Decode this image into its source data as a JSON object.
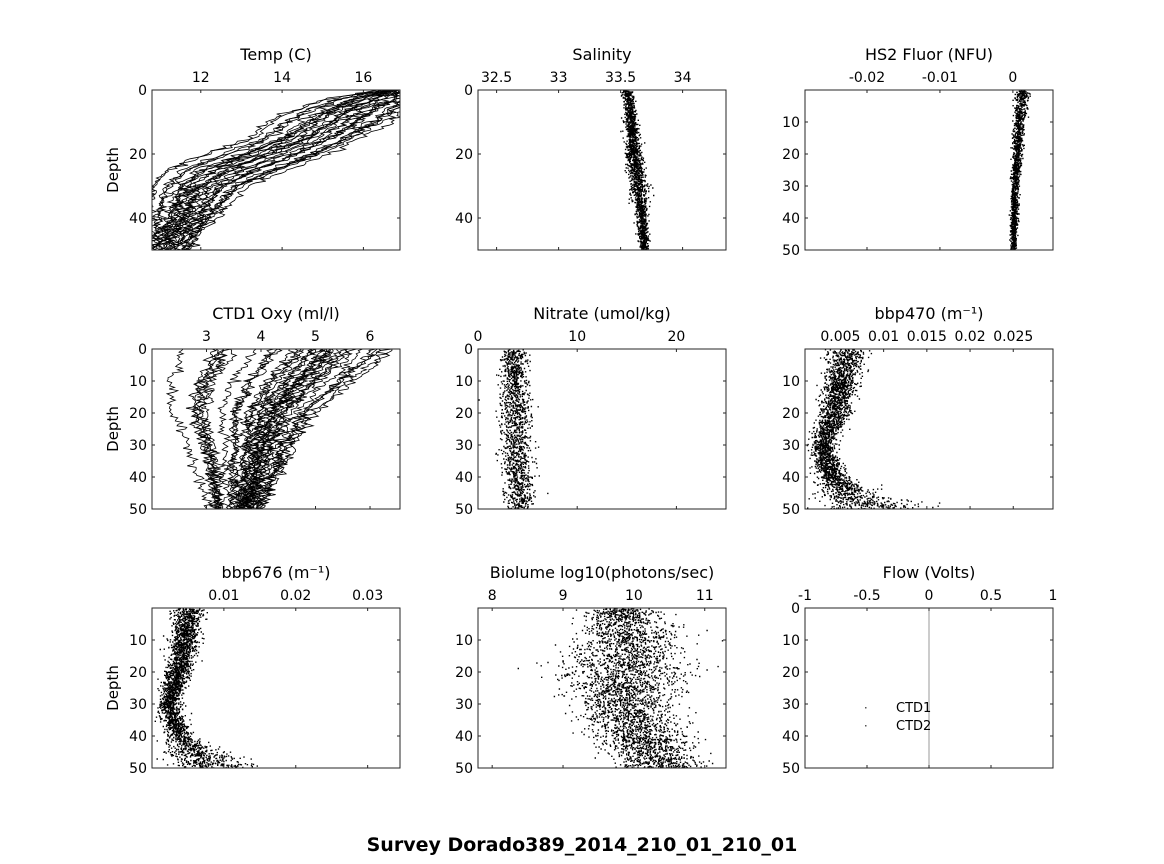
{
  "figure_title": "Survey Dorado389_2014_210_01_210_01",
  "colors": {
    "ink": "#000000",
    "axis": "#262626",
    "zero_line": "#999999"
  },
  "chart_data": [
    {
      "type": "scatter",
      "title": "Temp (C)",
      "ylabel": "Depth",
      "xlim": [
        10.8,
        16.9
      ],
      "xticks": [
        12,
        14,
        16
      ],
      "xticklabels": [
        "12",
        "14",
        "16"
      ],
      "ylim": [
        0,
        50
      ],
      "yticks": [
        0,
        20,
        40
      ],
      "yticklabels": [
        "0",
        "20",
        "40"
      ],
      "profile": {
        "depth": [
          0,
          3,
          6,
          10,
          15,
          20,
          25,
          30,
          35,
          40,
          45,
          50
        ],
        "center": [
          16.8,
          16.4,
          15.9,
          15.4,
          14.8,
          13.9,
          12.9,
          12.2,
          11.9,
          11.7,
          11.4,
          11.2
        ],
        "spread": [
          0.2,
          0.7,
          0.8,
          0.9,
          0.8,
          0.9,
          0.9,
          0.7,
          0.6,
          0.5,
          0.4,
          0.4
        ]
      },
      "style": "lines",
      "n_profiles": 30
    },
    {
      "type": "scatter",
      "title": "Salinity",
      "ylabel": "",
      "xlim": [
        32.35,
        34.35
      ],
      "xticks": [
        32.5,
        33,
        33.5,
        34
      ],
      "xticklabels": [
        "32.5",
        "33",
        "33.5",
        "34"
      ],
      "ylim": [
        0,
        50
      ],
      "yticks": [
        0,
        20,
        40
      ],
      "yticklabels": [
        "0",
        "20",
        "40"
      ],
      "profile": {
        "depth": [
          0,
          5,
          10,
          20,
          30,
          40,
          50
        ],
        "center": [
          33.55,
          33.57,
          33.58,
          33.6,
          33.64,
          33.67,
          33.69
        ],
        "spread": [
          0.03,
          0.03,
          0.03,
          0.04,
          0.04,
          0.03,
          0.02
        ]
      },
      "style": "dots",
      "n_points": 1800
    },
    {
      "type": "scatter",
      "title": "HS2 Fluor (NFU)",
      "ylabel": "",
      "xlim": [
        -0.0285,
        0.0055
      ],
      "xticks": [
        -0.02,
        -0.01,
        0
      ],
      "xticklabels": [
        "-0.02",
        "-0.01",
        "0"
      ],
      "ylim": [
        0,
        50
      ],
      "yticks": [
        10,
        20,
        30,
        40,
        50
      ],
      "yticklabels": [
        "10",
        "20",
        "30",
        "40",
        "50"
      ],
      "profile": {
        "depth": [
          1,
          10,
          20,
          30,
          40,
          50
        ],
        "center": [
          0.0012,
          0.0008,
          0.0005,
          0.0002,
          0.0001,
          0.0
        ],
        "spread": [
          0.0006,
          0.0005,
          0.0004,
          0.0003,
          0.0003,
          0.0002
        ]
      },
      "style": "dots",
      "n_points": 1500
    },
    {
      "type": "scatter",
      "title": "CTD1 Oxy (ml/l)",
      "ylabel": "Depth",
      "xlim": [
        2.0,
        6.55
      ],
      "xticks": [
        3,
        4,
        5,
        6
      ],
      "xticklabels": [
        "3",
        "4",
        "5",
        "6"
      ],
      "ylim": [
        0,
        50
      ],
      "yticks": [
        0,
        10,
        20,
        30,
        40,
        50
      ],
      "yticklabels": [
        "0",
        "10",
        "20",
        "30",
        "40",
        "50"
      ],
      "profile": {
        "depth": [
          0,
          5,
          10,
          20,
          30,
          40,
          50
        ],
        "center": [
          4.8,
          4.6,
          4.3,
          3.9,
          3.8,
          3.7,
          3.6
        ],
        "spread": [
          1.6,
          1.5,
          1.4,
          1.1,
          0.8,
          0.6,
          0.4
        ]
      },
      "style": "lines",
      "n_profiles": 36
    },
    {
      "type": "scatter",
      "title": "Nitrate (umol/kg)",
      "ylabel": "",
      "xlim": [
        0,
        25
      ],
      "xticks": [
        0,
        10,
        20
      ],
      "xticklabels": [
        "0",
        "10",
        "20"
      ],
      "ylim": [
        0,
        50
      ],
      "yticks": [
        0,
        10,
        20,
        30,
        40,
        50
      ],
      "yticklabels": [
        "0",
        "10",
        "20",
        "30",
        "40",
        "50"
      ],
      "profile": {
        "depth": [
          0,
          10,
          20,
          30,
          40,
          50
        ],
        "center": [
          3.5,
          3.6,
          3.8,
          3.9,
          4.0,
          4.1
        ],
        "spread": [
          0.8,
          0.9,
          1.0,
          1.0,
          0.9,
          0.8
        ]
      },
      "style": "dots",
      "n_points": 1400
    },
    {
      "type": "scatter",
      "title": "bbp470 (m⁻¹)",
      "ylabel": "",
      "xlim": [
        0.0009,
        0.0296
      ],
      "xticks": [
        0.005,
        0.01,
        0.015,
        0.02,
        0.025
      ],
      "xticklabels": [
        "0.005",
        "0.01",
        "0.015",
        "0.02",
        "0.025"
      ],
      "ylim": [
        0,
        50
      ],
      "yticks": [
        10,
        20,
        30,
        40,
        50
      ],
      "yticklabels": [
        "10",
        "20",
        "30",
        "40",
        "50"
      ],
      "profile": {
        "depth": [
          0,
          5,
          10,
          20,
          30,
          40,
          45,
          50
        ],
        "center": [
          0.0058,
          0.0055,
          0.005,
          0.0043,
          0.0028,
          0.004,
          0.006,
          0.009
        ],
        "spread": [
          0.0013,
          0.0012,
          0.0012,
          0.0011,
          0.0008,
          0.001,
          0.0022,
          0.004
        ]
      },
      "style": "dots",
      "n_points": 2600
    },
    {
      "type": "scatter",
      "title": "bbp676 (m⁻¹)",
      "ylabel": "Depth",
      "xlim": [
        0.0,
        0.0345
      ],
      "xticks": [
        0.01,
        0.02,
        0.03
      ],
      "xticklabels": [
        "0.01",
        "0.02",
        "0.03"
      ],
      "ylim": [
        0,
        50
      ],
      "yticks": [
        10,
        20,
        30,
        40,
        50
      ],
      "yticklabels": [
        "10",
        "20",
        "30",
        "40",
        "50"
      ],
      "profile": {
        "depth": [
          0,
          5,
          10,
          20,
          30,
          40,
          45,
          50
        ],
        "center": [
          0.0052,
          0.0048,
          0.0045,
          0.0035,
          0.0022,
          0.0038,
          0.006,
          0.009
        ],
        "spread": [
          0.0015,
          0.0013,
          0.0012,
          0.0011,
          0.0008,
          0.0012,
          0.0025,
          0.004
        ]
      },
      "style": "dots",
      "n_points": 2600
    },
    {
      "type": "scatter",
      "title": "Biolume log10(photons/sec)",
      "ylabel": "",
      "xlim": [
        7.8,
        11.3
      ],
      "xticks": [
        8,
        9,
        10,
        11
      ],
      "xticklabels": [
        "8",
        "9",
        "10",
        "11"
      ],
      "ylim": [
        0,
        50
      ],
      "yticks": [
        10,
        20,
        30,
        40,
        50
      ],
      "yticklabels": [
        "10",
        "20",
        "30",
        "40",
        "50"
      ],
      "profile": {
        "depth": [
          1,
          5,
          10,
          20,
          30,
          40,
          50
        ],
        "center": [
          9.8,
          9.9,
          9.95,
          9.8,
          9.85,
          10.1,
          10.4
        ],
        "spread": [
          0.3,
          0.4,
          0.45,
          0.55,
          0.4,
          0.4,
          0.35
        ]
      },
      "style": "dots",
      "n_points": 3200
    },
    {
      "type": "scatter",
      "title": "Flow (Volts)",
      "ylabel": "",
      "xlim": [
        -1,
        1
      ],
      "xticks": [
        -1,
        -0.5,
        0,
        0.5,
        1
      ],
      "xticklabels": [
        "-1",
        "-0.5",
        "0",
        "0.5",
        "1"
      ],
      "ylim": [
        0,
        50
      ],
      "yticks": [
        0,
        10,
        20,
        30,
        40,
        50
      ],
      "yticklabels": [
        "0",
        "10",
        "20",
        "30",
        "40",
        "50"
      ],
      "zero_line": 0,
      "legend": [
        "CTD1",
        "CTD2"
      ],
      "legend_position": "center-left",
      "style": "none"
    }
  ]
}
